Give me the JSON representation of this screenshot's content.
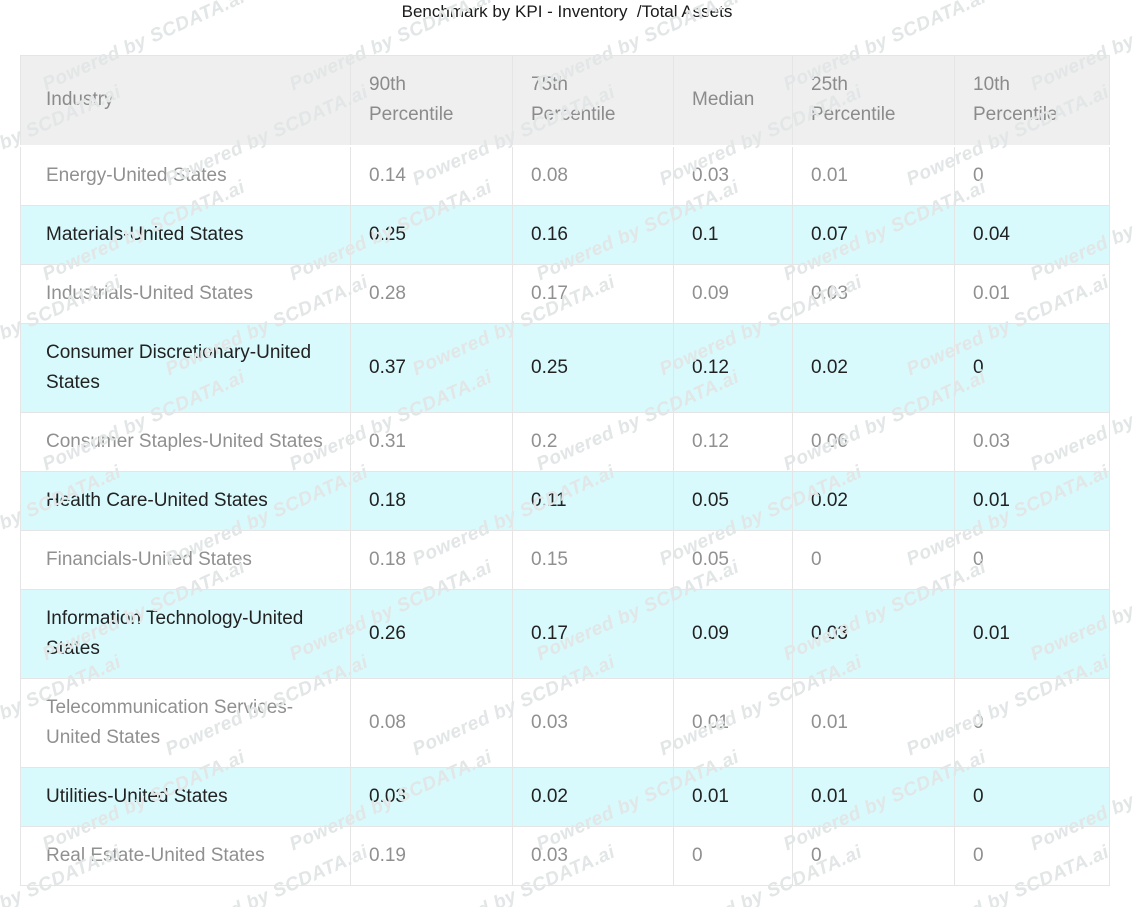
{
  "title": "Benchmark by KPI - Inventory  /Total Assets",
  "watermark": {
    "text": "Powered by SCDATA.ai"
  },
  "table": {
    "columns": [
      "Industry",
      "90th Percentile",
      "75th Percentile",
      "Median",
      "25th Percentile",
      "10th Percentile"
    ],
    "rows": [
      {
        "industry": "Energy-United States",
        "values": [
          "0.14",
          "0.08",
          "0.03",
          "0.01",
          "0"
        ],
        "highlighted": false
      },
      {
        "industry": "Materials-United States",
        "values": [
          "0.25",
          "0.16",
          "0.1",
          "0.07",
          "0.04"
        ],
        "highlighted": true
      },
      {
        "industry": "Industrials-United States",
        "values": [
          "0.28",
          "0.17",
          "0.09",
          "0.03",
          "0.01"
        ],
        "highlighted": false
      },
      {
        "industry": "Consumer Discretionary-United States",
        "values": [
          "0.37",
          "0.25",
          "0.12",
          "0.02",
          "0"
        ],
        "highlighted": true
      },
      {
        "industry": "Consumer Staples-United States",
        "values": [
          "0.31",
          "0.2",
          "0.12",
          "0.06",
          "0.03"
        ],
        "highlighted": false
      },
      {
        "industry": "Health Care-United States",
        "values": [
          "0.18",
          "0.11",
          "0.05",
          "0.02",
          "0.01"
        ],
        "highlighted": true
      },
      {
        "industry": "Financials-United States",
        "values": [
          "0.18",
          "0.15",
          "0.05",
          "0",
          "0"
        ],
        "highlighted": false
      },
      {
        "industry": "Information Technology-United States",
        "values": [
          "0.26",
          "0.17",
          "0.09",
          "0.03",
          "0.01"
        ],
        "highlighted": true
      },
      {
        "industry": "Telecommunication Services-United States",
        "values": [
          "0.08",
          "0.03",
          "0.01",
          "0.01",
          "0"
        ],
        "highlighted": false
      },
      {
        "industry": "Utilities-United States",
        "values": [
          "0.03",
          "0.02",
          "0.01",
          "0.01",
          "0"
        ],
        "highlighted": true
      },
      {
        "industry": "Real Estate-United States",
        "values": [
          "0.19",
          "0.03",
          "0",
          "0",
          "0"
        ],
        "highlighted": false
      }
    ]
  },
  "colors": {
    "header_bg": "#efefef",
    "header_text": "#8b8b8b",
    "row_bg": "#ffffff",
    "row_text": "#909090",
    "highlight_row_bg": "#d9fafc",
    "highlight_row_text": "#222222",
    "border": "#e5e5e5",
    "title_text": "#1a1a1a",
    "watermark_text": "#e2e6e6"
  }
}
